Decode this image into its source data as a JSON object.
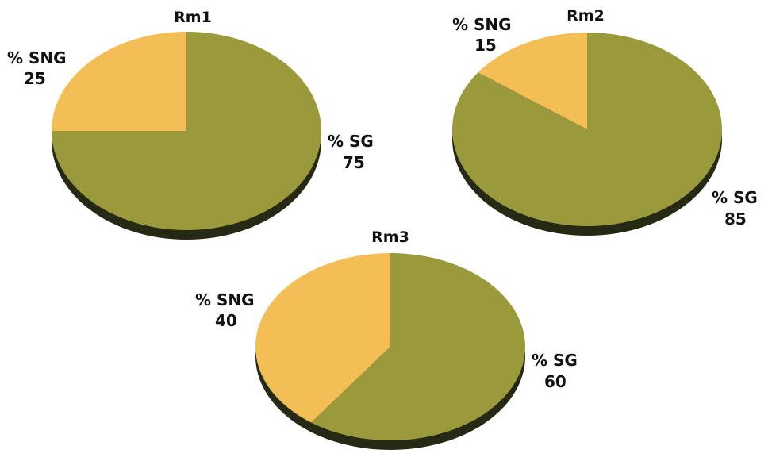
{
  "colors": {
    "sg": "#9a9a3c",
    "sng": "#f2be55",
    "shadow": "#262a14",
    "background": "#ffffff"
  },
  "chart_data": [
    {
      "type": "pie",
      "title": "Rm1",
      "slices": [
        {
          "name": "% SNG",
          "value": 25
        },
        {
          "name": "% SG",
          "value": 75
        }
      ]
    },
    {
      "type": "pie",
      "title": "Rm2",
      "slices": [
        {
          "name": "% SNG",
          "value": 15
        },
        {
          "name": "% SG",
          "value": 85
        }
      ]
    },
    {
      "type": "pie",
      "title": "Rm3",
      "slices": [
        {
          "name": "% SNG",
          "value": 40
        },
        {
          "name": "% SG",
          "value": 60
        }
      ]
    }
  ]
}
